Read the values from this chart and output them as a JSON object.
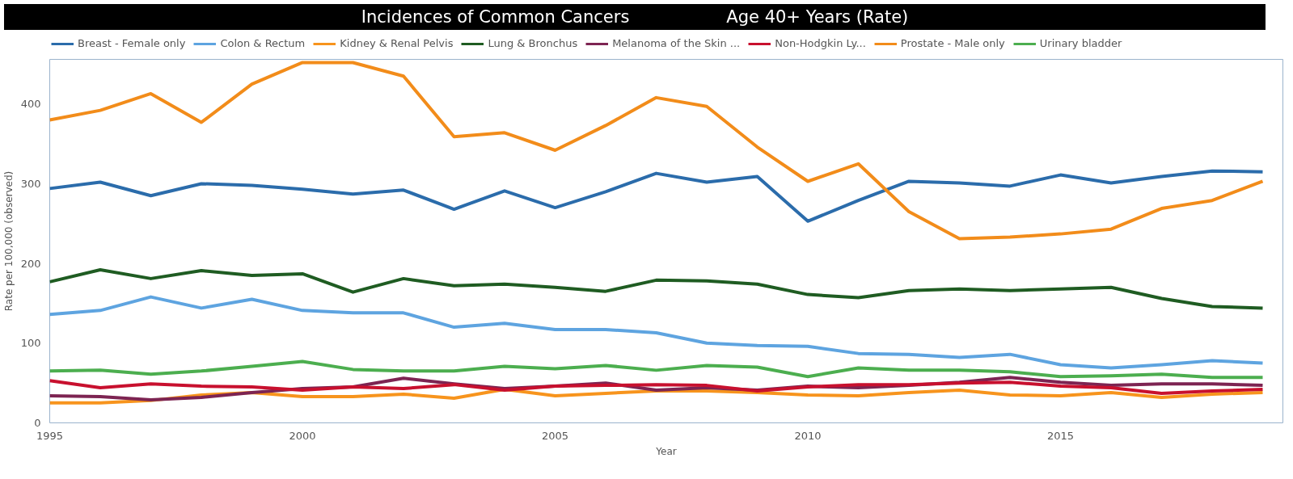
{
  "chart_data": {
    "type": "line",
    "title": "Incidences of Common Cancers",
    "subtitle": "Age 40+ Years (Rate)",
    "xlabel": "Year",
    "ylabel": "Rate per 100,000 (observed)",
    "x": [
      1995,
      1996,
      1997,
      1998,
      1999,
      2000,
      2001,
      2002,
      2003,
      2004,
      2005,
      2006,
      2007,
      2008,
      2009,
      2010,
      2011,
      2012,
      2013,
      2014,
      2015,
      2016,
      2017,
      2018,
      2019
    ],
    "xlim": [
      1995,
      2019.4
    ],
    "xticks": [
      1995,
      2000,
      2005,
      2010,
      2015
    ],
    "ylim": [
      0,
      456
    ],
    "yticks": [
      0,
      100,
      200,
      300,
      400
    ],
    "grid": false,
    "legend": "top",
    "line_style": "solid",
    "marker": "none",
    "series": [
      {
        "name": "Breast - Female only",
        "color": "#2b6cab",
        "values": [
          294,
          302,
          285,
          300,
          298,
          293,
          287,
          292,
          268,
          291,
          270,
          290,
          313,
          302,
          309,
          253,
          279,
          303,
          301,
          297,
          311,
          301,
          309,
          316,
          315
        ]
      },
      {
        "name": "Colon & Rectum",
        "color": "#5ea4e0",
        "values": [
          136,
          141,
          158,
          144,
          155,
          141,
          138,
          138,
          120,
          125,
          117,
          117,
          113,
          100,
          97,
          96,
          87,
          86,
          82,
          86,
          73,
          69,
          73,
          78,
          75
        ]
      },
      {
        "name": "Kidney & Renal Pelvis",
        "color": "#f7941d",
        "values": [
          25,
          25,
          28,
          35,
          38,
          33,
          33,
          36,
          31,
          42,
          34,
          37,
          40,
          40,
          38,
          35,
          34,
          38,
          41,
          35,
          34,
          38,
          32,
          36,
          38
        ]
      },
      {
        "name": "Lung & Bronchus",
        "color": "#1f5c22",
        "values": [
          177,
          192,
          181,
          191,
          185,
          187,
          164,
          181,
          172,
          174,
          170,
          165,
          179,
          178,
          174,
          161,
          157,
          166,
          168,
          166,
          168,
          170,
          156,
          146,
          144
        ]
      },
      {
        "name": "Melanoma of the Skin ...",
        "color": "#7d2452",
        "values": [
          34,
          33,
          29,
          32,
          38,
          43,
          45,
          56,
          49,
          43,
          46,
          50,
          41,
          44,
          41,
          46,
          44,
          47,
          51,
          57,
          51,
          47,
          49,
          49,
          47
        ]
      },
      {
        "name": "Non-Hodgkin Ly...",
        "color": "#c8102e",
        "values": [
          53,
          44,
          49,
          46,
          45,
          41,
          45,
          43,
          48,
          41,
          46,
          47,
          48,
          47,
          40,
          45,
          48,
          48,
          50,
          51,
          46,
          44,
          37,
          40,
          42
        ]
      },
      {
        "name": "Prostate - Male only",
        "color": "#f28c1a",
        "values": [
          380,
          392,
          413,
          377,
          425,
          452,
          452,
          435,
          359,
          364,
          342,
          373,
          408,
          397,
          346,
          303,
          325,
          265,
          231,
          233,
          237,
          243,
          269,
          279,
          303
        ]
      },
      {
        "name": "Urinary bladder",
        "color": "#4cae4f",
        "values": [
          65,
          66,
          61,
          65,
          71,
          77,
          67,
          65,
          65,
          71,
          68,
          72,
          66,
          72,
          70,
          58,
          69,
          66,
          66,
          64,
          58,
          59,
          61,
          57,
          57
        ]
      }
    ]
  }
}
